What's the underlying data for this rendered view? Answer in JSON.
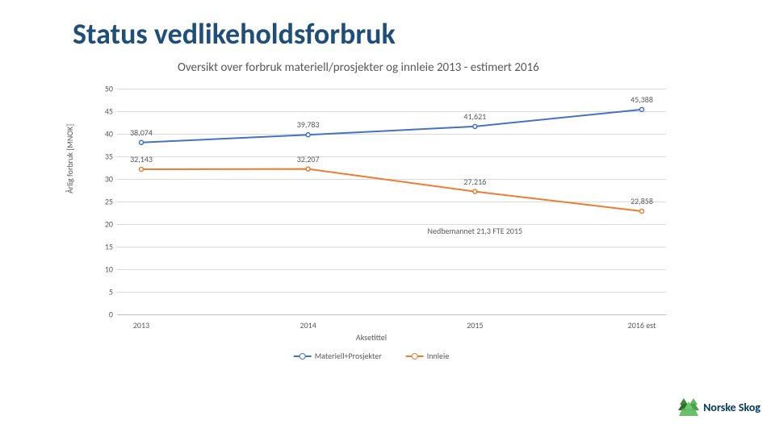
{
  "title": "Status vedlikeholdsforbruk",
  "subtitle": "Oversikt over forbruk materiell/prosjekter og innleie 2013 - estimert 2016",
  "chart": {
    "type": "line",
    "y_axis_label": "Årlig forbruk [MNOK]",
    "x_axis_label": "Aksetittel",
    "ylim": [
      0,
      50
    ],
    "ytick_step": 5,
    "categories": [
      "2013",
      "2014",
      "2015",
      "2016 est"
    ],
    "series": [
      {
        "name": "Materiell+Prosjekter",
        "color": "#4472c4",
        "values": [
          38.074,
          39.783,
          41.621,
          45.388
        ],
        "labels": [
          "38,074",
          "39,783",
          "41,621",
          "45,388"
        ]
      },
      {
        "name": "Innleie",
        "color": "#ed7d31",
        "values": [
          32.143,
          32.207,
          27.216,
          22.858
        ],
        "labels": [
          "32,143",
          "32,207",
          "27,216",
          "22,858"
        ]
      }
    ],
    "annotation": {
      "text": "Nedbemannet 21,3 FTE 2015",
      "x_index": 2,
      "y_value": 20
    },
    "grid_color": "#d9d9d9",
    "axis_color": "#bfbfbf",
    "label_color": "#595959",
    "background": "#ffffff",
    "tick_fontsize": 10,
    "title_fontsize": 36,
    "title_color": "#1f4e79",
    "line_width": 2,
    "marker_size": 5
  },
  "legend": {
    "s0": "Materiell+Prosjekter",
    "s1": "Innleie"
  },
  "logo_text": "Norske Skog"
}
